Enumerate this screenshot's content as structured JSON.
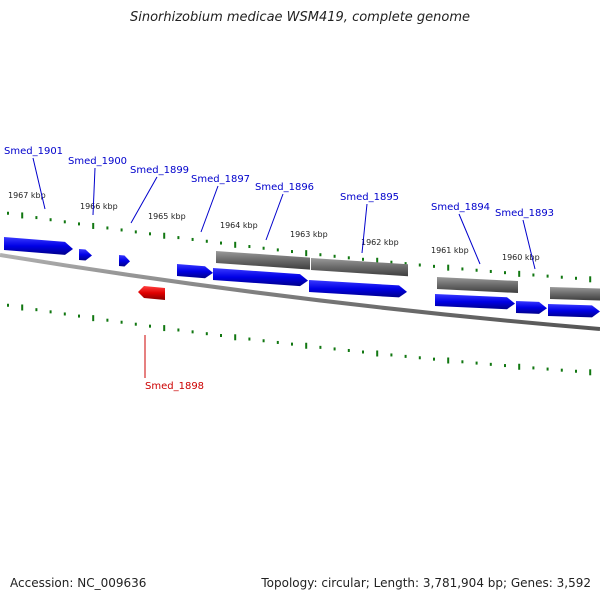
{
  "title": "Sinorhizobium medicae WSM419, complete genome",
  "footer": {
    "accession": "Accession: NC_009636",
    "summary": "Topology: circular; Length: 3,781,904 bp; Genes: 3,592"
  },
  "colors": {
    "forward_gene": "#0000ee",
    "reverse_gene": "#ee0000",
    "other_feature": "#666666",
    "backbone": "#888888",
    "tick": "#117711",
    "label_forward": "#0000cc",
    "label_reverse": "#cc0000"
  },
  "ticks": [
    "1967 kbp",
    "1966 kbp",
    "1965 kbp",
    "1964 kbp",
    "1963 kbp",
    "1962 kbp",
    "1961 kbp",
    "1960 kbp"
  ],
  "genes": [
    {
      "name": "Smed_1901",
      "strand": "forward"
    },
    {
      "name": "Smed_1900",
      "strand": "forward"
    },
    {
      "name": "Smed_1899",
      "strand": "forward"
    },
    {
      "name": "Smed_1898",
      "strand": "reverse"
    },
    {
      "name": "Smed_1897",
      "strand": "forward"
    },
    {
      "name": "Smed_1896",
      "strand": "forward"
    },
    {
      "name": "Smed_1895",
      "strand": "forward"
    },
    {
      "name": "Smed_1894",
      "strand": "forward"
    },
    {
      "name": "Smed_1893",
      "strand": "forward"
    }
  ]
}
